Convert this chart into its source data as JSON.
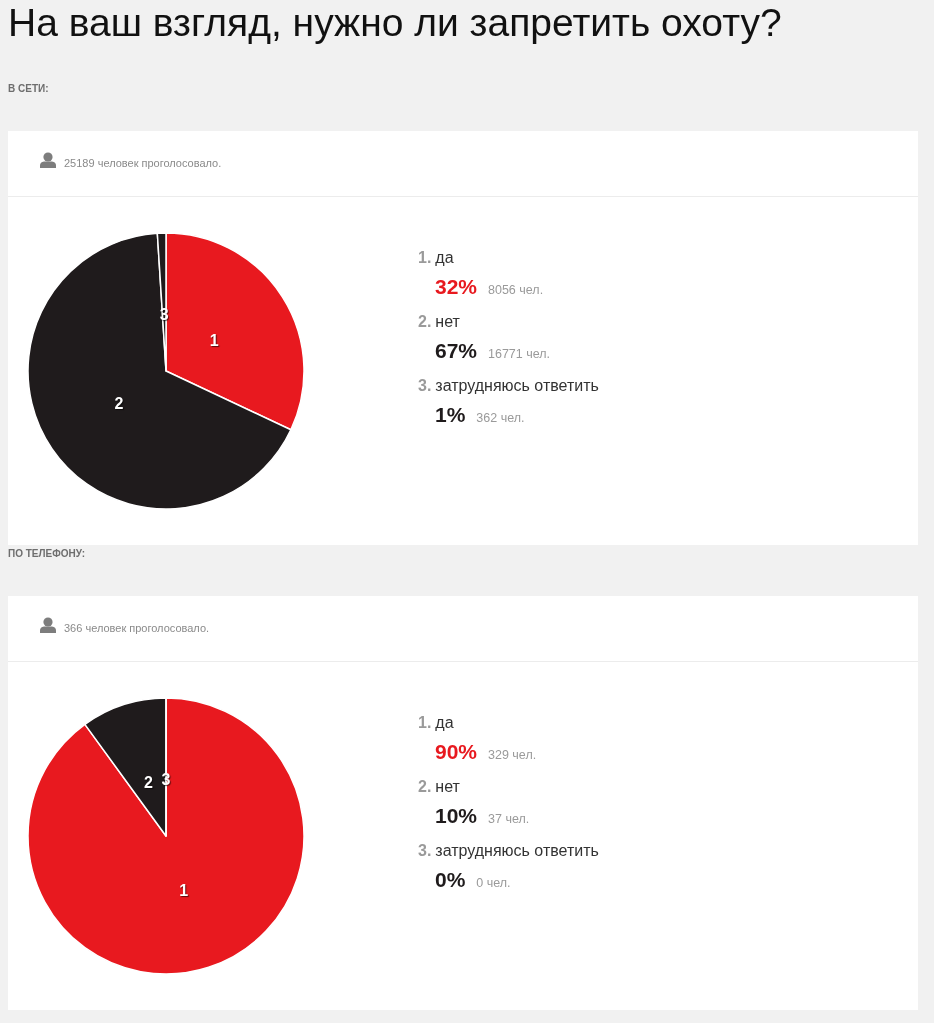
{
  "chart_data": [
    {
      "type": "pie",
      "title": "На ваш взгляд, нужно ли запретить охоту?",
      "subtitle": "В СЕТИ:",
      "categories": [
        "1",
        "2",
        "3"
      ],
      "values": [
        32,
        67,
        1
      ],
      "colors": [
        "#e8191f",
        "#1f1b1c",
        "#1f1b1c"
      ],
      "annotations": [
        "25189 человек проголосовало.",
        {
          "text": "1.",
          "x": "1"
        },
        {
          "text": "да",
          "x": "1"
        },
        {
          "text": "32%",
          "x": "1"
        },
        {
          "text": "8056 чел.",
          "x": "1"
        },
        {
          "text": "2.",
          "x": "2"
        },
        {
          "text": "нет",
          "x": "2"
        },
        {
          "text": "67%",
          "x": "2"
        },
        {
          "text": "16771 чел.",
          "x": "2"
        },
        {
          "text": "3.",
          "x": "3"
        },
        {
          "text": "затрудняюсь ответить",
          "x": "3"
        },
        {
          "text": "1%",
          "x": "3"
        },
        {
          "text": "362 чел.",
          "x": "3"
        }
      ]
    },
    {
      "type": "pie",
      "subtitle": "ПО ТЕЛЕФОНУ:",
      "categories": [
        "1",
        "2",
        "3"
      ],
      "values": [
        90,
        10,
        0
      ],
      "colors": [
        "#e8191f",
        "#1f1b1c",
        "#1f1b1c"
      ],
      "annotations": [
        "366 человек проголосовало.",
        {
          "text": "1.",
          "x": "1"
        },
        {
          "text": "да",
          "x": "1"
        },
        {
          "text": "90%",
          "x": "1"
        },
        {
          "text": "329 чел.",
          "x": "1"
        },
        {
          "text": "2.",
          "x": "2"
        },
        {
          "text": "нет",
          "x": "2"
        },
        {
          "text": "10%",
          "x": "2"
        },
        {
          "text": "37 чел.",
          "x": "2"
        },
        {
          "text": "3.",
          "x": "3"
        },
        {
          "text": "затрудняюсь ответить",
          "x": "3"
        },
        {
          "text": "0%",
          "x": "3"
        },
        {
          "text": "0 чел.",
          "x": "3"
        }
      ]
    }
  ]
}
